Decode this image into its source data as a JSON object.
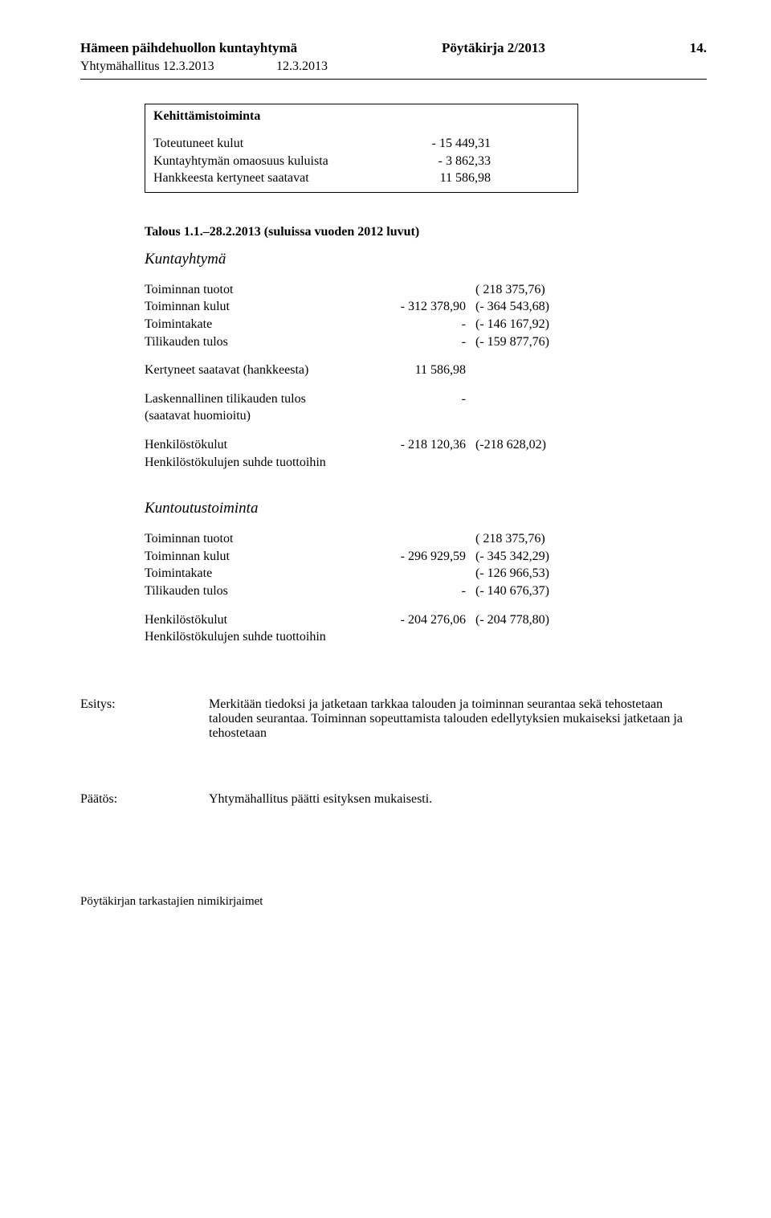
{
  "header": {
    "org": "Hämeen päihdehuollon kuntayhtymä",
    "doc": "Pöytäkirja 2/2013",
    "page": "14."
  },
  "subheader": {
    "left": "Yhtymähallitus 12.3.2013",
    "right": "12.3.2013"
  },
  "box": {
    "title": "Kehittämistoiminta",
    "rows": [
      {
        "label": "Toteutuneet kulut",
        "value": "- 15 449,31"
      },
      {
        "label": "Kuntayhtymän omaosuus kuluista",
        "value": "- 3 862,33"
      },
      {
        "label": "Hankkeesta kertyneet saatavat",
        "value": "11 586,98"
      }
    ]
  },
  "talous": {
    "heading": "Talous 1.1.–28.2.2013 (suluissa vuoden 2012 luvut)",
    "sections": [
      {
        "title": "Kuntayhtymä",
        "rows": [
          {
            "label": "Toiminnan tuotot",
            "c1": "",
            "c2": "( 218 375,76)"
          },
          {
            "label": "Toiminnan kulut",
            "c1": "- 312 378,90",
            "c2": "(- 364 543,68)"
          },
          {
            "label": "Toimintakate",
            "c1": "-",
            "c2": "(- 146 167,92)"
          },
          {
            "label": "Tilikauden tulos",
            "c1": "-",
            "c2": "(- 159 877,76)"
          }
        ],
        "extra1": {
          "label": "Kertyneet saatavat (hankkeesta)",
          "c1": "11 586,98",
          "c2": ""
        },
        "extra2a": {
          "label": "Laskennallinen tilikauden tulos",
          "c1": "-",
          "c2": ""
        },
        "extra2b": {
          "label": "(saatavat huomioitu)",
          "c1": "",
          "c2": ""
        },
        "hk": {
          "label": "Henkilöstökulut",
          "c1": "- 218 120,36",
          "c2": "(-218 628,02)"
        },
        "hksuhde": "Henkilöstökulujen suhde tuottoihin"
      },
      {
        "title": "Kuntoutustoiminta",
        "rows": [
          {
            "label": "Toiminnan tuotot",
            "c1": "",
            "c2": "( 218 375,76)"
          },
          {
            "label": "Toiminnan kulut",
            "c1": "- 296 929,59",
            "c2": "(- 345 342,29)"
          },
          {
            "label": "Toimintakate",
            "c1": "",
            "c2": "(- 126 966,53)"
          },
          {
            "label": "Tilikauden tulos",
            "c1": "-",
            "c2": "(- 140 676,37)"
          }
        ],
        "hk": {
          "label": "Henkilöstökulut",
          "c1": "- 204 276,06",
          "c2": "(- 204 778,80)"
        },
        "hksuhde": "Henkilöstökulujen suhde tuottoihin"
      }
    ]
  },
  "esitys": {
    "label": "Esitys:",
    "text": "Merkitään tiedoksi ja jatketaan tarkkaa talouden ja toiminnan seurantaa sekä tehostetaan talouden seurantaa. Toiminnan sopeuttamista talouden edellytyksien mukaiseksi jatketaan ja tehostetaan"
  },
  "paatos": {
    "label": "Päätös:",
    "text": "Yhtymähallitus päätti esityksen mukaisesti."
  },
  "footer": "Pöytäkirjan tarkastajien nimikirjaimet"
}
